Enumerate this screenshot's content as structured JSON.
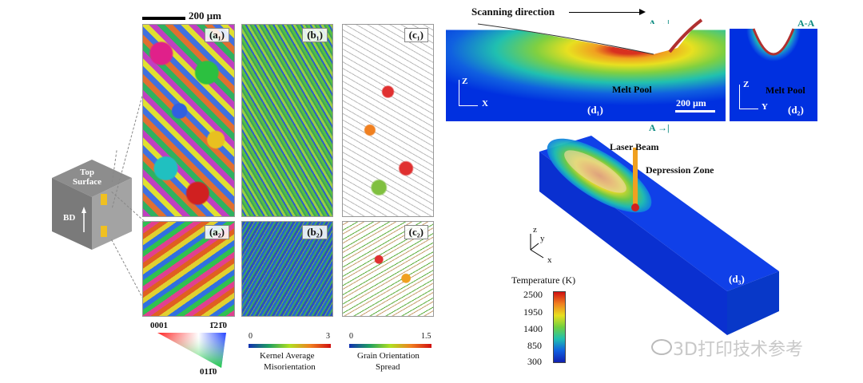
{
  "scalebar_top": {
    "label": "200 μm"
  },
  "cube": {
    "top_label": "Top\nSurface",
    "bd_label": "BD"
  },
  "panels": {
    "a1": "(a₁)",
    "b1": "(b₁)",
    "c1": "(c₁)",
    "a2": "(a₂)",
    "b2": "(b₂)",
    "c2": "(c₂)"
  },
  "ipf_legend": {
    "t0001": "0001",
    "t1210": "1̄21̄0",
    "t0110": "011̄0"
  },
  "kam_legend": {
    "min": "0",
    "max": "3",
    "title1": "Kernel Average",
    "title2": "Misorientation"
  },
  "gos_legend": {
    "min": "0",
    "max": "1.5",
    "title1": "Grain Orientation",
    "title2": "Spread"
  },
  "d1": {
    "title": "Scanning direction",
    "section": "A",
    "section_bottom": "A",
    "melt_pool": "Melt Pool",
    "axis_z": "Z",
    "axis_x": "X",
    "label": "(d₁)",
    "scalebar": "200 μm"
  },
  "d2": {
    "section": "A-A",
    "melt_pool": "Melt Pool",
    "axis_z": "Z",
    "axis_y": "Y",
    "label": "(d₂)"
  },
  "d3": {
    "laser_beam": "Laser Beam",
    "depression_zone": "Depression Zone",
    "axis_z": "z",
    "axis_y": "y",
    "axis_x": "x",
    "label": "(d₃)"
  },
  "temperature_bar": {
    "title": "Temperature (K)",
    "ticks": [
      "2500",
      "1950",
      "1400",
      "850",
      "300"
    ]
  },
  "watermark": "3D打印技术参考"
}
